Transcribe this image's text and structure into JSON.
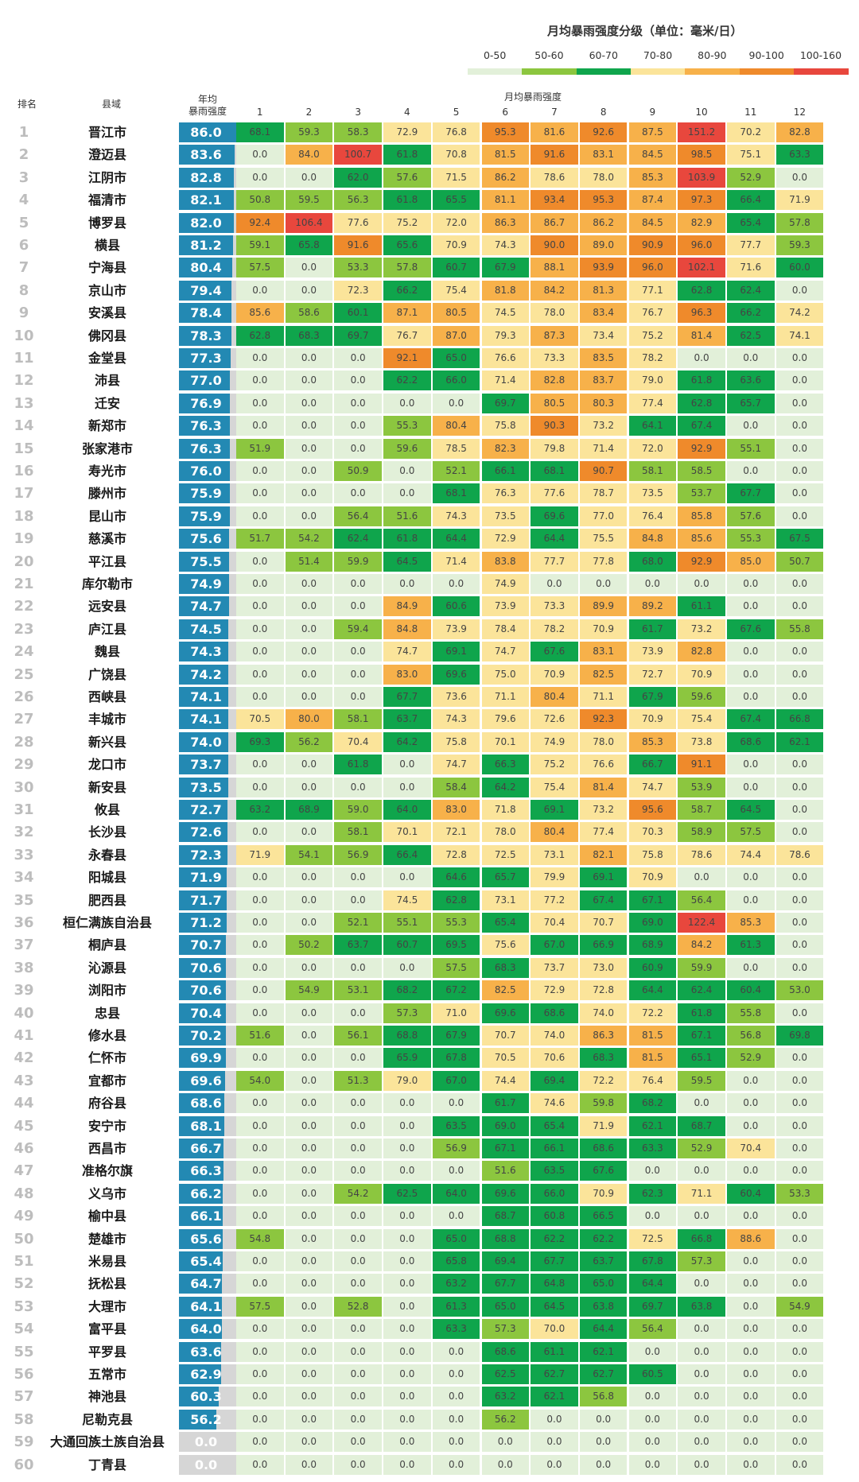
{
  "legend": {
    "title": "月均暴雨强度分级（单位：毫米/日）",
    "bins": [
      {
        "label": "0-50",
        "color": "#e2f0d9"
      },
      {
        "label": "50-60",
        "color": "#8cc63f"
      },
      {
        "label": "60-70",
        "color": "#0fa54c"
      },
      {
        "label": "70-80",
        "color": "#fbe49a"
      },
      {
        "label": "80-90",
        "color": "#f7b14a"
      },
      {
        "label": "90-100",
        "color": "#ef8a2b"
      },
      {
        "label": "100-160",
        "color": "#e8473d"
      }
    ]
  },
  "headers": {
    "rank": "排名",
    "county": "县域",
    "annual_line1": "年均",
    "annual_line2": "暴雨强度",
    "monthly": "月均暴雨强度",
    "months": [
      "1",
      "2",
      "3",
      "4",
      "5",
      "6",
      "7",
      "8",
      "9",
      "10",
      "11",
      "12"
    ]
  },
  "chart_data": {
    "type": "table",
    "title": "月均暴雨强度分级（单位：毫米/日）",
    "annual_max": 86.0,
    "rows": [
      {
        "rank": 1,
        "county": "晋江市",
        "annual": 86.0,
        "monthly": [
          68.1,
          59.3,
          58.3,
          72.9,
          76.8,
          95.3,
          81.6,
          92.6,
          87.5,
          151.2,
          70.2,
          82.8
        ]
      },
      {
        "rank": 2,
        "county": "澄迈县",
        "annual": 83.6,
        "monthly": [
          0.0,
          84.0,
          100.7,
          61.8,
          70.8,
          81.5,
          91.6,
          83.1,
          84.5,
          98.5,
          75.1,
          63.3
        ]
      },
      {
        "rank": 3,
        "county": "江阴市",
        "annual": 82.8,
        "monthly": [
          0.0,
          0.0,
          62.0,
          57.6,
          71.5,
          86.2,
          78.6,
          78.0,
          85.3,
          103.9,
          52.9,
          0.0
        ]
      },
      {
        "rank": 4,
        "county": "福清市",
        "annual": 82.1,
        "monthly": [
          50.8,
          59.5,
          56.3,
          61.8,
          65.5,
          81.1,
          93.4,
          95.3,
          87.4,
          97.3,
          66.4,
          71.9
        ]
      },
      {
        "rank": 5,
        "county": "博罗县",
        "annual": 82.0,
        "monthly": [
          92.4,
          106.4,
          77.6,
          75.2,
          72.0,
          86.3,
          86.7,
          86.2,
          84.5,
          82.9,
          65.4,
          57.8
        ]
      },
      {
        "rank": 6,
        "county": "横县",
        "annual": 81.2,
        "monthly": [
          59.1,
          65.8,
          91.6,
          65.6,
          70.9,
          74.3,
          90.0,
          89.0,
          90.9,
          96.0,
          77.7,
          59.3
        ]
      },
      {
        "rank": 7,
        "county": "宁海县",
        "annual": 80.4,
        "monthly": [
          57.5,
          0.0,
          53.3,
          57.8,
          60.7,
          67.9,
          88.1,
          93.9,
          96.0,
          102.1,
          71.6,
          60.0
        ]
      },
      {
        "rank": 8,
        "county": "京山市",
        "annual": 79.4,
        "monthly": [
          0.0,
          0.0,
          72.3,
          66.2,
          75.4,
          81.8,
          84.2,
          81.3,
          77.1,
          62.8,
          62.4,
          0.0
        ]
      },
      {
        "rank": 9,
        "county": "安溪县",
        "annual": 78.4,
        "monthly": [
          85.6,
          58.6,
          60.1,
          87.1,
          80.5,
          74.5,
          78.0,
          83.4,
          76.7,
          96.3,
          66.2,
          74.2
        ]
      },
      {
        "rank": 10,
        "county": "佛冈县",
        "annual": 78.3,
        "monthly": [
          62.8,
          68.3,
          69.7,
          76.7,
          87.0,
          79.3,
          87.3,
          73.4,
          75.2,
          81.4,
          62.5,
          74.1
        ]
      },
      {
        "rank": 11,
        "county": "金堂县",
        "annual": 77.3,
        "monthly": [
          0.0,
          0.0,
          0.0,
          92.1,
          65.0,
          76.6,
          73.3,
          83.5,
          78.2,
          0.0,
          0.0,
          0.0
        ]
      },
      {
        "rank": 12,
        "county": "沛县",
        "annual": 77.0,
        "monthly": [
          0.0,
          0.0,
          0.0,
          62.2,
          66.0,
          71.4,
          82.8,
          83.7,
          79.0,
          61.8,
          63.6,
          0.0
        ]
      },
      {
        "rank": 13,
        "county": "迁安",
        "annual": 76.9,
        "monthly": [
          0.0,
          0.0,
          0.0,
          0.0,
          0.0,
          69.7,
          80.5,
          80.3,
          77.4,
          62.8,
          65.7,
          0.0
        ]
      },
      {
        "rank": 14,
        "county": "新郑市",
        "annual": 76.3,
        "monthly": [
          0.0,
          0.0,
          0.0,
          55.3,
          80.4,
          75.8,
          90.3,
          73.2,
          64.1,
          67.4,
          0.0,
          0.0
        ]
      },
      {
        "rank": 15,
        "county": "张家港市",
        "annual": 76.3,
        "monthly": [
          51.9,
          0.0,
          0.0,
          59.6,
          78.5,
          82.3,
          79.8,
          71.4,
          72.0,
          92.9,
          55.1,
          0.0
        ]
      },
      {
        "rank": 16,
        "county": "寿光市",
        "annual": 76.0,
        "monthly": [
          0.0,
          0.0,
          50.9,
          0.0,
          52.1,
          66.1,
          68.1,
          90.7,
          58.1,
          58.5,
          0.0,
          0.0
        ]
      },
      {
        "rank": 17,
        "county": "滕州市",
        "annual": 75.9,
        "monthly": [
          0.0,
          0.0,
          0.0,
          0.0,
          68.1,
          76.3,
          77.6,
          78.7,
          73.5,
          53.7,
          67.7,
          0.0
        ]
      },
      {
        "rank": 18,
        "county": "昆山市",
        "annual": 75.9,
        "monthly": [
          0.0,
          0.0,
          56.4,
          51.6,
          74.3,
          73.5,
          69.6,
          77.0,
          76.4,
          85.8,
          57.6,
          0.0
        ]
      },
      {
        "rank": 19,
        "county": "慈溪市",
        "annual": 75.6,
        "monthly": [
          51.7,
          54.2,
          62.4,
          61.8,
          64.4,
          72.9,
          64.4,
          75.5,
          84.8,
          85.6,
          55.3,
          67.5
        ]
      },
      {
        "rank": 20,
        "county": "平江县",
        "annual": 75.5,
        "monthly": [
          0.0,
          51.4,
          59.9,
          64.5,
          71.4,
          83.8,
          77.7,
          77.8,
          68.0,
          92.9,
          85.0,
          50.7
        ]
      },
      {
        "rank": 21,
        "county": "库尔勒市",
        "annual": 74.9,
        "monthly": [
          0.0,
          0.0,
          0.0,
          0.0,
          0.0,
          74.9,
          0.0,
          0.0,
          0.0,
          0.0,
          0.0,
          0.0
        ]
      },
      {
        "rank": 22,
        "county": "远安县",
        "annual": 74.7,
        "monthly": [
          0.0,
          0.0,
          0.0,
          84.9,
          60.6,
          73.9,
          73.3,
          89.9,
          89.2,
          61.1,
          0.0,
          0.0
        ]
      },
      {
        "rank": 23,
        "county": "庐江县",
        "annual": 74.5,
        "monthly": [
          0.0,
          0.0,
          59.4,
          84.8,
          73.9,
          78.4,
          78.2,
          70.9,
          61.7,
          73.2,
          67.6,
          55.8
        ]
      },
      {
        "rank": 24,
        "county": "魏县",
        "annual": 74.3,
        "monthly": [
          0.0,
          0.0,
          0.0,
          74.7,
          69.1,
          74.7,
          67.6,
          83.1,
          73.9,
          82.8,
          0.0,
          0.0
        ]
      },
      {
        "rank": 25,
        "county": "广饶县",
        "annual": 74.2,
        "monthly": [
          0.0,
          0.0,
          0.0,
          83.0,
          69.6,
          75.0,
          70.9,
          82.5,
          72.7,
          70.9,
          0.0,
          0.0
        ]
      },
      {
        "rank": 26,
        "county": "西峡县",
        "annual": 74.1,
        "monthly": [
          0.0,
          0.0,
          0.0,
          67.7,
          73.6,
          71.1,
          80.4,
          71.1,
          67.9,
          59.6,
          0.0,
          0.0
        ]
      },
      {
        "rank": 27,
        "county": "丰城市",
        "annual": 74.1,
        "monthly": [
          70.5,
          80.0,
          58.1,
          63.7,
          74.3,
          79.6,
          72.6,
          92.3,
          70.9,
          75.4,
          67.4,
          66.8
        ]
      },
      {
        "rank": 28,
        "county": "新兴县",
        "annual": 74.0,
        "monthly": [
          69.3,
          56.2,
          70.4,
          64.2,
          75.8,
          70.1,
          74.9,
          78.0,
          85.3,
          73.8,
          68.6,
          62.1
        ]
      },
      {
        "rank": 29,
        "county": "龙口市",
        "annual": 73.7,
        "monthly": [
          0.0,
          0.0,
          61.8,
          0.0,
          74.7,
          66.3,
          75.2,
          76.6,
          66.7,
          91.1,
          0.0,
          0.0
        ]
      },
      {
        "rank": 30,
        "county": "新安县",
        "annual": 73.5,
        "monthly": [
          0.0,
          0.0,
          0.0,
          0.0,
          58.4,
          64.2,
          75.4,
          81.4,
          74.7,
          53.9,
          0.0,
          0.0
        ]
      },
      {
        "rank": 31,
        "county": "攸县",
        "annual": 72.7,
        "monthly": [
          63.2,
          68.9,
          59.0,
          64.0,
          83.0,
          71.8,
          69.1,
          73.2,
          95.6,
          58.7,
          64.5,
          0.0
        ]
      },
      {
        "rank": 32,
        "county": "长沙县",
        "annual": 72.6,
        "monthly": [
          0.0,
          0.0,
          58.1,
          70.1,
          72.1,
          78.0,
          80.4,
          77.4,
          70.3,
          58.9,
          57.5,
          0.0
        ]
      },
      {
        "rank": 33,
        "county": "永春县",
        "annual": 72.3,
        "monthly": [
          71.9,
          54.1,
          56.9,
          66.4,
          72.8,
          72.5,
          73.1,
          82.1,
          75.8,
          78.6,
          74.4,
          78.6
        ]
      },
      {
        "rank": 34,
        "county": "阳城县",
        "annual": 71.9,
        "monthly": [
          0.0,
          0.0,
          0.0,
          0.0,
          64.6,
          65.7,
          79.9,
          69.1,
          70.9,
          0.0,
          0.0,
          0.0
        ]
      },
      {
        "rank": 35,
        "county": "肥西县",
        "annual": 71.7,
        "monthly": [
          0.0,
          0.0,
          0.0,
          74.5,
          62.8,
          73.1,
          77.2,
          67.4,
          67.1,
          56.4,
          0.0,
          0.0
        ]
      },
      {
        "rank": 36,
        "county": "桓仁满族自治县",
        "annual": 71.2,
        "monthly": [
          0.0,
          0.0,
          52.1,
          55.1,
          55.3,
          65.4,
          70.4,
          70.7,
          69.0,
          122.4,
          85.3,
          0.0
        ]
      },
      {
        "rank": 37,
        "county": "桐庐县",
        "annual": 70.7,
        "monthly": [
          0.0,
          50.2,
          63.7,
          60.7,
          69.5,
          75.6,
          67.0,
          66.9,
          68.9,
          84.2,
          61.3,
          0.0
        ]
      },
      {
        "rank": 38,
        "county": "沁源县",
        "annual": 70.6,
        "monthly": [
          0.0,
          0.0,
          0.0,
          0.0,
          57.5,
          68.3,
          73.7,
          73.0,
          60.9,
          59.9,
          0.0,
          0.0
        ]
      },
      {
        "rank": 39,
        "county": "浏阳市",
        "annual": 70.6,
        "monthly": [
          0.0,
          54.9,
          53.1,
          68.2,
          67.2,
          82.5,
          72.9,
          72.8,
          64.4,
          62.4,
          60.4,
          53.0
        ]
      },
      {
        "rank": 40,
        "county": "忠县",
        "annual": 70.4,
        "monthly": [
          0.0,
          0.0,
          0.0,
          57.3,
          71.0,
          69.6,
          68.6,
          74.0,
          72.2,
          61.8,
          55.8,
          0.0
        ]
      },
      {
        "rank": 41,
        "county": "修水县",
        "annual": 70.2,
        "monthly": [
          51.6,
          0.0,
          56.1,
          68.8,
          67.9,
          70.7,
          74.0,
          86.3,
          81.5,
          67.1,
          56.8,
          69.8
        ]
      },
      {
        "rank": 42,
        "county": "仁怀市",
        "annual": 69.9,
        "monthly": [
          0.0,
          0.0,
          0.0,
          65.9,
          67.8,
          70.5,
          70.6,
          68.3,
          81.5,
          65.1,
          52.9,
          0.0
        ]
      },
      {
        "rank": 43,
        "county": "宜都市",
        "annual": 69.6,
        "monthly": [
          54.0,
          0.0,
          51.3,
          79.0,
          67.0,
          74.4,
          69.4,
          72.2,
          76.4,
          59.5,
          0.0,
          0.0
        ]
      },
      {
        "rank": 44,
        "county": "府谷县",
        "annual": 68.6,
        "monthly": [
          0.0,
          0.0,
          0.0,
          0.0,
          0.0,
          61.7,
          74.6,
          59.8,
          68.2,
          0.0,
          0.0,
          0.0
        ]
      },
      {
        "rank": 45,
        "county": "安宁市",
        "annual": 68.1,
        "monthly": [
          0.0,
          0.0,
          0.0,
          0.0,
          63.5,
          69.0,
          65.4,
          71.9,
          62.1,
          68.7,
          0.0,
          0.0
        ]
      },
      {
        "rank": 46,
        "county": "西昌市",
        "annual": 66.7,
        "monthly": [
          0.0,
          0.0,
          0.0,
          0.0,
          56.9,
          67.1,
          66.1,
          68.6,
          63.3,
          52.9,
          70.4,
          0.0
        ]
      },
      {
        "rank": 47,
        "county": "准格尔旗",
        "annual": 66.3,
        "monthly": [
          0.0,
          0.0,
          0.0,
          0.0,
          0.0,
          51.6,
          63.5,
          67.6,
          0.0,
          0.0,
          0.0,
          0.0
        ]
      },
      {
        "rank": 48,
        "county": "义乌市",
        "annual": 66.2,
        "monthly": [
          0.0,
          0.0,
          54.2,
          62.5,
          64.0,
          69.6,
          66.0,
          70.9,
          62.3,
          71.1,
          60.4,
          53.3
        ]
      },
      {
        "rank": 49,
        "county": "榆中县",
        "annual": 66.1,
        "monthly": [
          0.0,
          0.0,
          0.0,
          0.0,
          0.0,
          68.7,
          60.8,
          66.5,
          0.0,
          0.0,
          0.0,
          0.0
        ]
      },
      {
        "rank": 50,
        "county": "楚雄市",
        "annual": 65.6,
        "monthly": [
          54.8,
          0.0,
          0.0,
          0.0,
          65.0,
          68.8,
          62.2,
          62.2,
          72.5,
          66.8,
          88.6,
          0.0
        ]
      },
      {
        "rank": 51,
        "county": "米易县",
        "annual": 65.4,
        "monthly": [
          0.0,
          0.0,
          0.0,
          0.0,
          65.8,
          69.4,
          67.7,
          63.7,
          67.8,
          57.3,
          0.0,
          0.0
        ]
      },
      {
        "rank": 52,
        "county": "抚松县",
        "annual": 64.7,
        "monthly": [
          0.0,
          0.0,
          0.0,
          0.0,
          63.2,
          67.7,
          64.8,
          65.0,
          64.4,
          0.0,
          0.0,
          0.0
        ]
      },
      {
        "rank": 53,
        "county": "大理市",
        "annual": 64.1,
        "monthly": [
          57.5,
          0.0,
          52.8,
          0.0,
          61.3,
          65.0,
          64.5,
          63.8,
          69.7,
          63.8,
          0.0,
          54.9
        ]
      },
      {
        "rank": 54,
        "county": "富平县",
        "annual": 64.0,
        "monthly": [
          0.0,
          0.0,
          0.0,
          0.0,
          63.3,
          57.3,
          70.0,
          64.4,
          56.4,
          0.0,
          0.0,
          0.0
        ]
      },
      {
        "rank": 55,
        "county": "平罗县",
        "annual": 63.6,
        "monthly": [
          0.0,
          0.0,
          0.0,
          0.0,
          0.0,
          68.6,
          61.1,
          62.1,
          0.0,
          0.0,
          0.0,
          0.0
        ]
      },
      {
        "rank": 56,
        "county": "五常市",
        "annual": 62.9,
        "monthly": [
          0.0,
          0.0,
          0.0,
          0.0,
          0.0,
          62.5,
          62.7,
          62.7,
          60.5,
          0.0,
          0.0,
          0.0
        ]
      },
      {
        "rank": 57,
        "county": "神池县",
        "annual": 60.3,
        "monthly": [
          0.0,
          0.0,
          0.0,
          0.0,
          0.0,
          63.2,
          62.1,
          56.8,
          0.0,
          0.0,
          0.0,
          0.0
        ]
      },
      {
        "rank": 58,
        "county": "尼勒克县",
        "annual": 56.2,
        "monthly": [
          0.0,
          0.0,
          0.0,
          0.0,
          0.0,
          56.2,
          0.0,
          0.0,
          0.0,
          0.0,
          0.0,
          0.0
        ]
      },
      {
        "rank": 59,
        "county": "大通回族土族自治县",
        "annual": 0.0,
        "monthly": [
          0.0,
          0.0,
          0.0,
          0.0,
          0.0,
          0.0,
          0.0,
          0.0,
          0.0,
          0.0,
          0.0,
          0.0
        ]
      },
      {
        "rank": 60,
        "county": "丁青县",
        "annual": 0.0,
        "monthly": [
          0.0,
          0.0,
          0.0,
          0.0,
          0.0,
          0.0,
          0.0,
          0.0,
          0.0,
          0.0,
          0.0,
          0.0
        ]
      }
    ]
  }
}
